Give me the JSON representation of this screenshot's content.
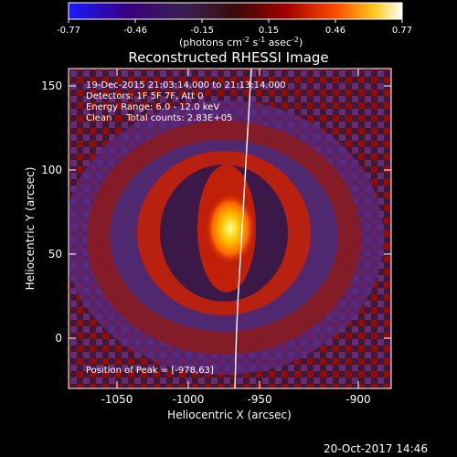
{
  "colorbar": {
    "ticks": [
      "-0.77",
      "-0.46",
      "-0.15",
      "0.15",
      "0.46",
      "0.77"
    ],
    "units_main": "(photons cm",
    "units_exp1": "-2",
    "units_mid": " s",
    "units_exp2": "-1",
    "units_end": " asec",
    "units_exp3": "-2",
    "units_close": ")"
  },
  "plot": {
    "title": "Reconstructed RHESSI Image",
    "xlabel": "Heliocentric X (arcsec)",
    "ylabel": "Heliocentric Y (arcsec)",
    "xticks": [
      "-1050",
      "-1000",
      "-950",
      "-900"
    ],
    "yticks": [
      "0",
      "50",
      "100",
      "150"
    ]
  },
  "annotations": {
    "time_range": "19-Dec-2015 21:03:14.000 to 21:13:14.000",
    "detectors": "Detectors: 1F 5F 7F, Att 0",
    "energy": "Energy Range: 6.0 - 12.0 keV",
    "clean": "Clean     Total counts: 2.83E+05",
    "peak": "Position of Peak = [-978,63]"
  },
  "footer": {
    "timestamp": "20-Oct-2017 14:46"
  },
  "colors": {
    "background": "#000000",
    "text": "#ffffff"
  }
}
